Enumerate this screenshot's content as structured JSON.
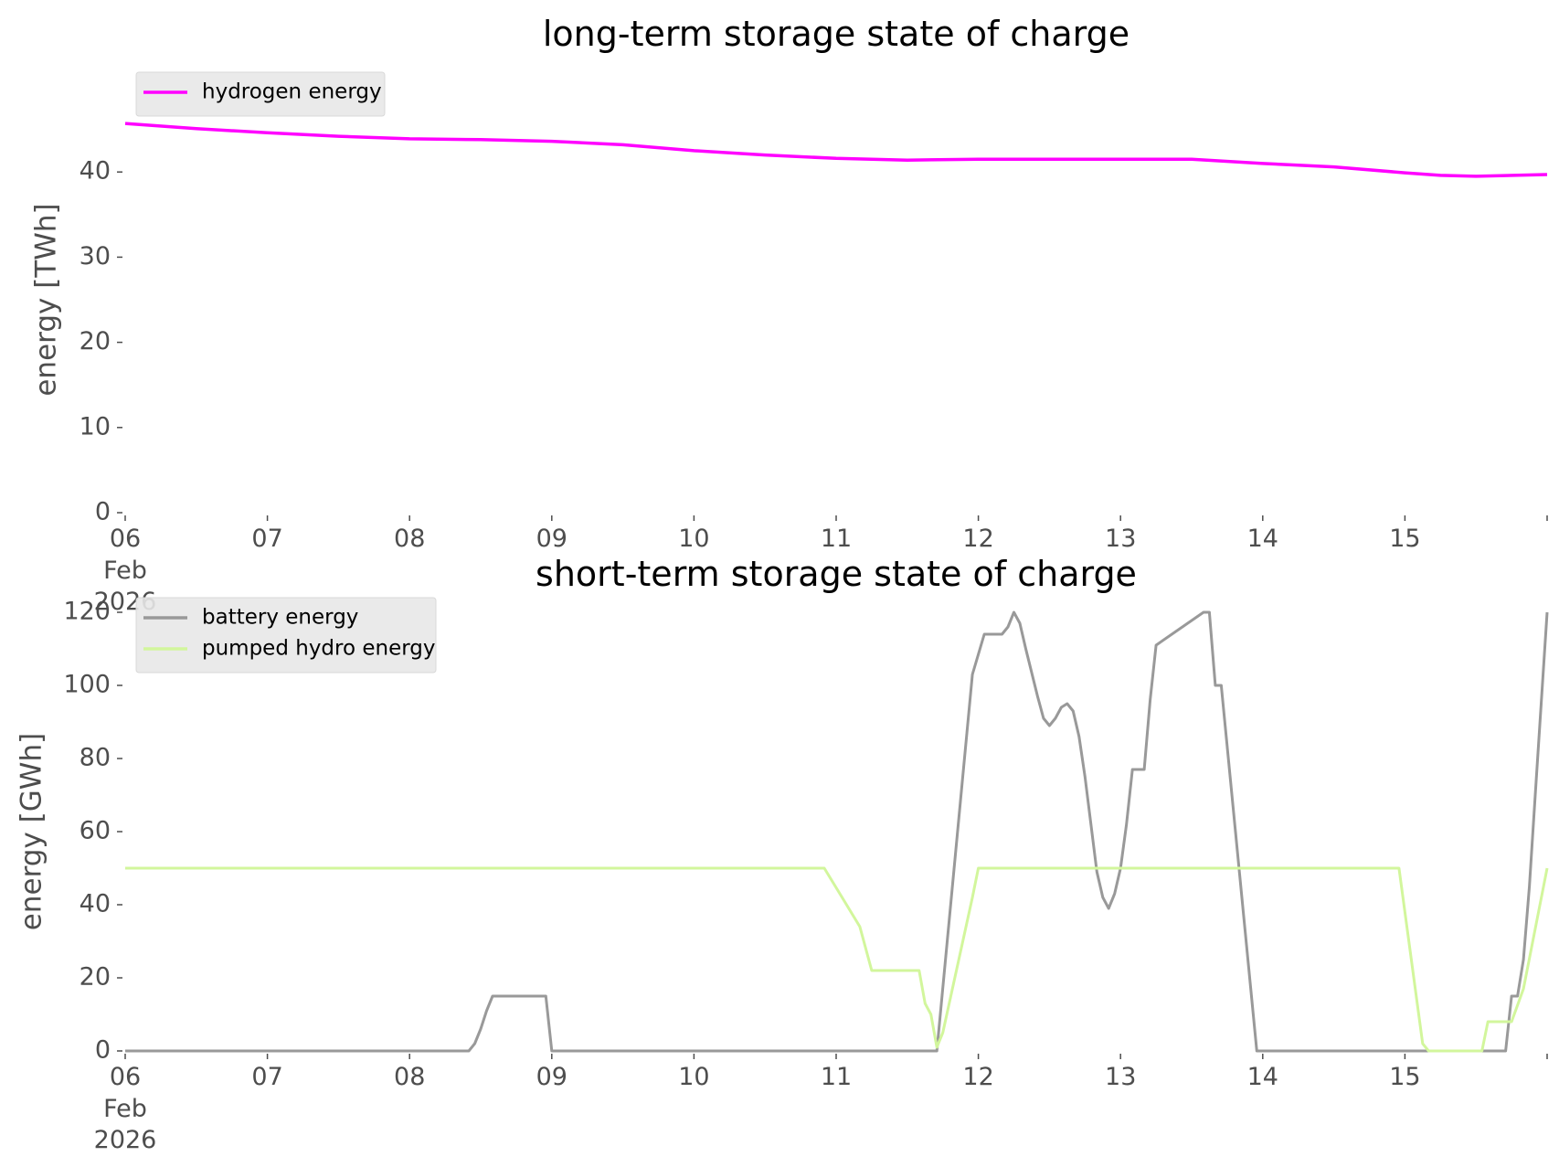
{
  "colors": {
    "hydrogen": "#ff00ff",
    "battery": "#999999",
    "pumped_hydro": "#d2f69c",
    "legend_bg": "#e8e8e8",
    "text": "#4d4d4d"
  },
  "chart_data": [
    {
      "type": "line",
      "title": "long-term storage state of charge",
      "xlabel": "",
      "ylabel": "energy [TWh]",
      "xlim": [
        "2026-02-06",
        "2026-02-16"
      ],
      "ylim": [
        0,
        50
      ],
      "yticks": [
        "0",
        "10",
        "20",
        "30",
        "40"
      ],
      "xticks": [
        "06",
        "07",
        "08",
        "09",
        "10",
        "11",
        "12",
        "13",
        "14",
        "15"
      ],
      "xtick_first_extra": [
        "Feb",
        "2026"
      ],
      "grid": false,
      "legend_placement": "top-left",
      "series": [
        {
          "name": "hydrogen energy",
          "color": "#ff00ff",
          "x": [
            "2026-02-06T00:00",
            "2026-02-06T12:00",
            "2026-02-07T00:00",
            "2026-02-07T12:00",
            "2026-02-08T00:00",
            "2026-02-08T12:00",
            "2026-02-09T00:00",
            "2026-02-09T12:00",
            "2026-02-10T00:00",
            "2026-02-10T12:00",
            "2026-02-11T00:00",
            "2026-02-11T12:00",
            "2026-02-12T00:00",
            "2026-02-12T12:00",
            "2026-02-13T00:00",
            "2026-02-13T12:00",
            "2026-02-14T00:00",
            "2026-02-14T12:00",
            "2026-02-15T00:00",
            "2026-02-15T06:00",
            "2026-02-15T12:00",
            "2026-02-16T00:00"
          ],
          "y": [
            45.7,
            45.1,
            44.6,
            44.2,
            43.9,
            43.8,
            43.6,
            43.2,
            42.5,
            42.0,
            41.6,
            41.4,
            41.5,
            41.5,
            41.5,
            41.5,
            41.0,
            40.6,
            39.9,
            39.6,
            39.5,
            39.7
          ]
        }
      ]
    },
    {
      "type": "line",
      "title": "short-term storage state of charge",
      "xlabel": "",
      "ylabel": "energy [GWh]",
      "xlim": [
        "2026-02-06",
        "2026-02-16"
      ],
      "ylim": [
        0,
        120
      ],
      "yticks": [
        "0",
        "20",
        "40",
        "60",
        "80",
        "100",
        "120"
      ],
      "xticks": [
        "06",
        "07",
        "08",
        "09",
        "10",
        "11",
        "12",
        "13",
        "14",
        "15"
      ],
      "xtick_first_extra": [
        "Feb",
        "2026"
      ],
      "grid": false,
      "legend_placement": "top-left",
      "series": [
        {
          "name": "battery energy",
          "color": "#999999",
          "x": [
            "2026-02-06T00:00",
            "2026-02-08T10:00",
            "2026-02-08T11:00",
            "2026-02-08T12:00",
            "2026-02-08T13:00",
            "2026-02-08T14:00",
            "2026-02-08T23:00",
            "2026-02-09T00:00",
            "2026-02-11T17:00",
            "2026-02-11T23:00",
            "2026-02-12T01:00",
            "2026-02-12T04:00",
            "2026-02-12T05:00",
            "2026-02-12T06:00",
            "2026-02-12T07:00",
            "2026-02-12T08:00",
            "2026-02-12T10:00",
            "2026-02-12T11:00",
            "2026-02-12T12:00",
            "2026-02-12T13:00",
            "2026-02-12T14:00",
            "2026-02-12T15:00",
            "2026-02-12T16:00",
            "2026-02-12T17:00",
            "2026-02-12T18:00",
            "2026-02-12T19:00",
            "2026-02-12T20:00",
            "2026-02-12T21:00",
            "2026-02-12T22:00",
            "2026-02-12T23:00",
            "2026-02-13T00:00",
            "2026-02-13T01:00",
            "2026-02-13T02:00",
            "2026-02-13T03:00",
            "2026-02-13T04:00",
            "2026-02-13T05:00",
            "2026-02-13T06:00",
            "2026-02-13T14:00",
            "2026-02-13T15:00",
            "2026-02-13T16:00",
            "2026-02-13T17:00",
            "2026-02-13T23:00",
            "2026-02-14T00:00",
            "2026-02-15T15:00",
            "2026-02-15T17:00",
            "2026-02-15T18:00",
            "2026-02-15T19:00",
            "2026-02-15T20:00",
            "2026-02-15T21:00",
            "2026-02-15T22:00",
            "2026-02-16T00:00"
          ],
          "y": [
            0,
            0,
            2,
            6,
            11,
            15,
            15,
            0,
            0,
            103,
            114,
            114,
            116,
            120,
            117,
            110,
            97,
            91,
            89,
            91,
            94,
            95,
            93,
            86,
            75,
            62,
            49,
            42,
            39,
            43,
            50,
            62,
            77,
            77,
            77,
            96,
            111,
            120,
            120,
            100,
            100,
            0,
            0,
            0,
            0,
            15,
            15,
            25,
            45,
            70,
            120
          ]
        },
        {
          "name": "pumped hydro energy",
          "color": "#d2f69c",
          "x": [
            "2026-02-06T00:00",
            "2026-02-10T22:00",
            "2026-02-11T01:00",
            "2026-02-11T04:00",
            "2026-02-11T06:00",
            "2026-02-11T14:00",
            "2026-02-11T15:00",
            "2026-02-11T16:00",
            "2026-02-11T17:00",
            "2026-02-11T18:00",
            "2026-02-11T23:00",
            "2026-02-12T00:00",
            "2026-02-14T23:00",
            "2026-02-15T03:00",
            "2026-02-15T04:00",
            "2026-02-15T13:00",
            "2026-02-15T14:00",
            "2026-02-15T18:00",
            "2026-02-15T20:00",
            "2026-02-16T00:00"
          ],
          "y": [
            50,
            50,
            42,
            34,
            22,
            22,
            13,
            10,
            1,
            5,
            42,
            50,
            50,
            2,
            0,
            0,
            8,
            8,
            17,
            50
          ]
        }
      ]
    }
  ]
}
